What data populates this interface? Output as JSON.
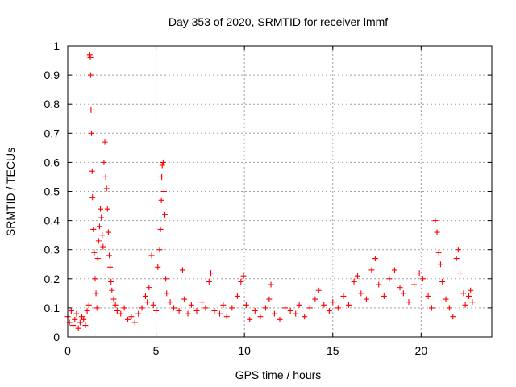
{
  "chart_data": {
    "type": "scatter",
    "title": "Day 353 of 2020, SRMTID for receiver lmmf",
    "xlabel": "GPS time / hours",
    "ylabel": "SRMTID / TECUs",
    "xlim": [
      0,
      24
    ],
    "ylim": [
      0,
      1
    ],
    "xticks": [
      0,
      5,
      10,
      15,
      20
    ],
    "xtick_labels": [
      "0",
      "5",
      "10",
      "15",
      "20"
    ],
    "yticks": [
      0,
      0.1,
      0.2,
      0.3,
      0.4,
      0.5,
      0.6,
      0.7,
      0.8,
      0.9,
      1
    ],
    "ytick_labels": [
      "0",
      "0.1",
      "0.2",
      "0.3",
      "0.4",
      "0.5",
      "0.6",
      "0.7",
      "0.8",
      "0.9",
      "1"
    ],
    "grid": true,
    "marker": "plus",
    "color": "#ff0000",
    "series": [
      {
        "name": "SRMTID",
        "points": [
          [
            0.0,
            0.07
          ],
          [
            0.1,
            0.05
          ],
          [
            0.2,
            0.09
          ],
          [
            0.3,
            0.04
          ],
          [
            0.4,
            0.06
          ],
          [
            0.5,
            0.08
          ],
          [
            0.6,
            0.03
          ],
          [
            0.7,
            0.05
          ],
          [
            0.8,
            0.07
          ],
          [
            0.9,
            0.06
          ],
          [
            1.0,
            0.04
          ],
          [
            1.1,
            0.09
          ],
          [
            1.2,
            0.11
          ],
          [
            1.25,
            0.97
          ],
          [
            1.28,
            0.96
          ],
          [
            1.3,
            0.9
          ],
          [
            1.32,
            0.78
          ],
          [
            1.35,
            0.7
          ],
          [
            1.38,
            0.57
          ],
          [
            1.4,
            0.48
          ],
          [
            1.45,
            0.37
          ],
          [
            1.5,
            0.29
          ],
          [
            1.55,
            0.2
          ],
          [
            1.6,
            0.15
          ],
          [
            1.65,
            0.1
          ],
          [
            1.7,
            0.27
          ],
          [
            1.75,
            0.33
          ],
          [
            1.8,
            0.38
          ],
          [
            1.85,
            0.44
          ],
          [
            1.9,
            0.41
          ],
          [
            1.95,
            0.35
          ],
          [
            2.0,
            0.31
          ],
          [
            2.05,
            0.6
          ],
          [
            2.1,
            0.67
          ],
          [
            2.15,
            0.55
          ],
          [
            2.2,
            0.51
          ],
          [
            2.25,
            0.44
          ],
          [
            2.3,
            0.36
          ],
          [
            2.35,
            0.28
          ],
          [
            2.4,
            0.24
          ],
          [
            2.45,
            0.19
          ],
          [
            2.5,
            0.16
          ],
          [
            2.6,
            0.13
          ],
          [
            2.7,
            0.11
          ],
          [
            2.8,
            0.09
          ],
          [
            3.0,
            0.08
          ],
          [
            3.2,
            0.1
          ],
          [
            3.4,
            0.06
          ],
          [
            3.6,
            0.07
          ],
          [
            3.8,
            0.05
          ],
          [
            4.0,
            0.08
          ],
          [
            4.2,
            0.1
          ],
          [
            4.4,
            0.14
          ],
          [
            4.5,
            0.12
          ],
          [
            4.6,
            0.17
          ],
          [
            4.75,
            0.28
          ],
          [
            4.85,
            0.11
          ],
          [
            5.0,
            0.09
          ],
          [
            5.1,
            0.24
          ],
          [
            5.2,
            0.3
          ],
          [
            5.25,
            0.37
          ],
          [
            5.3,
            0.47
          ],
          [
            5.32,
            0.55
          ],
          [
            5.35,
            0.59
          ],
          [
            5.4,
            0.6
          ],
          [
            5.45,
            0.5
          ],
          [
            5.5,
            0.42
          ],
          [
            5.55,
            0.2
          ],
          [
            5.6,
            0.15
          ],
          [
            5.8,
            0.12
          ],
          [
            6.0,
            0.1
          ],
          [
            6.3,
            0.09
          ],
          [
            6.5,
            0.23
          ],
          [
            6.6,
            0.13
          ],
          [
            6.8,
            0.08
          ],
          [
            7.0,
            0.11
          ],
          [
            7.3,
            0.09
          ],
          [
            7.6,
            0.12
          ],
          [
            7.8,
            0.1
          ],
          [
            8.0,
            0.19
          ],
          [
            8.1,
            0.22
          ],
          [
            8.3,
            0.09
          ],
          [
            8.6,
            0.08
          ],
          [
            8.8,
            0.11
          ],
          [
            9.0,
            0.07
          ],
          [
            9.3,
            0.1
          ],
          [
            9.6,
            0.14
          ],
          [
            9.8,
            0.19
          ],
          [
            9.95,
            0.21
          ],
          [
            10.1,
            0.11
          ],
          [
            10.3,
            0.06
          ],
          [
            10.6,
            0.09
          ],
          [
            10.9,
            0.07
          ],
          [
            11.2,
            0.1
          ],
          [
            11.4,
            0.13
          ],
          [
            11.5,
            0.18
          ],
          [
            11.7,
            0.08
          ],
          [
            12.0,
            0.06
          ],
          [
            12.3,
            0.1
          ],
          [
            12.6,
            0.09
          ],
          [
            12.9,
            0.08
          ],
          [
            13.1,
            0.11
          ],
          [
            13.4,
            0.07
          ],
          [
            13.7,
            0.1
          ],
          [
            14.0,
            0.13
          ],
          [
            14.2,
            0.16
          ],
          [
            14.5,
            0.11
          ],
          [
            14.8,
            0.09
          ],
          [
            15.0,
            0.12
          ],
          [
            15.3,
            0.1
          ],
          [
            15.6,
            0.14
          ],
          [
            15.9,
            0.11
          ],
          [
            16.2,
            0.19
          ],
          [
            16.4,
            0.21
          ],
          [
            16.6,
            0.15
          ],
          [
            16.9,
            0.13
          ],
          [
            17.2,
            0.23
          ],
          [
            17.4,
            0.27
          ],
          [
            17.6,
            0.18
          ],
          [
            17.9,
            0.14
          ],
          [
            18.2,
            0.2
          ],
          [
            18.5,
            0.23
          ],
          [
            18.8,
            0.17
          ],
          [
            19.0,
            0.15
          ],
          [
            19.3,
            0.12
          ],
          [
            19.6,
            0.18
          ],
          [
            19.9,
            0.22
          ],
          [
            20.1,
            0.2
          ],
          [
            20.4,
            0.14
          ],
          [
            20.6,
            0.1
          ],
          [
            20.8,
            0.4
          ],
          [
            20.9,
            0.36
          ],
          [
            21.0,
            0.29
          ],
          [
            21.1,
            0.25
          ],
          [
            21.2,
            0.19
          ],
          [
            21.4,
            0.13
          ],
          [
            21.6,
            0.1
          ],
          [
            21.8,
            0.07
          ],
          [
            22.0,
            0.27
          ],
          [
            22.1,
            0.3
          ],
          [
            22.2,
            0.22
          ],
          [
            22.4,
            0.15
          ],
          [
            22.5,
            0.11
          ],
          [
            22.7,
            0.14
          ],
          [
            22.8,
            0.16
          ],
          [
            22.9,
            0.12
          ]
        ]
      }
    ]
  }
}
